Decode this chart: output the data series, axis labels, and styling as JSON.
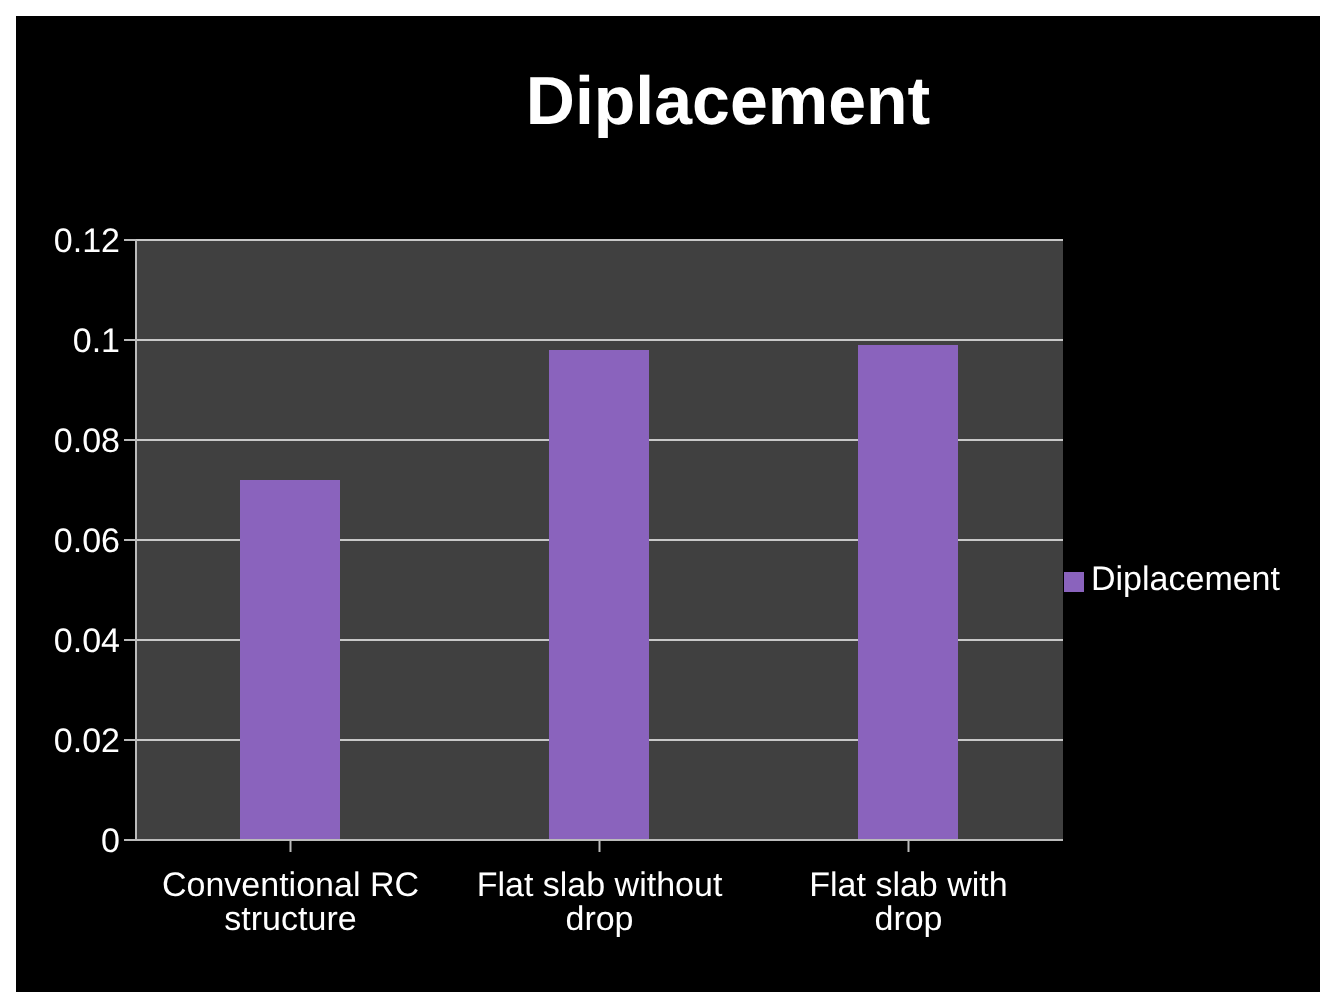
{
  "chart_data": {
    "type": "bar",
    "title": "Diplacement",
    "categories": [
      "Conventional RC structure",
      "Flat slab without drop",
      "Flat slab with drop"
    ],
    "series": [
      {
        "name": "Diplacement",
        "color": "#8a63bd",
        "values": [
          0.072,
          0.098,
          0.099
        ]
      }
    ],
    "ylim": [
      0,
      0.12
    ],
    "yticks": [
      0,
      0.02,
      0.04,
      0.06,
      0.08,
      0.1,
      0.12
    ],
    "grid": "y",
    "legend": "right"
  }
}
